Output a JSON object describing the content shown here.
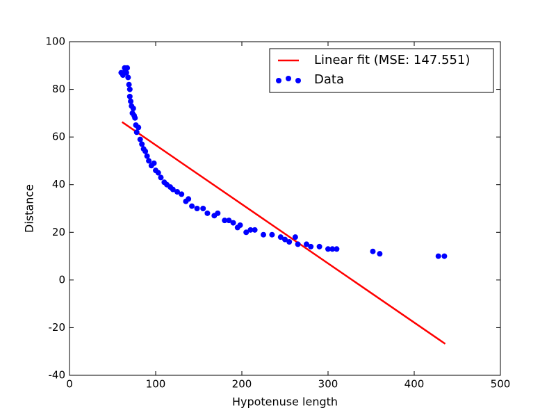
{
  "chart_data": {
    "type": "scatter",
    "xlabel": "Hypotenuse length",
    "ylabel": "Distance",
    "xlim": [
      0,
      500
    ],
    "ylim": [
      -40,
      100
    ],
    "xticks": [
      0,
      100,
      200,
      300,
      400,
      500
    ],
    "yticks": [
      -40,
      -20,
      0,
      20,
      40,
      60,
      80,
      100
    ],
    "grid": false,
    "legend": "upper right",
    "series": [
      {
        "name": "Linear fit (MSE: 147.551)",
        "type": "line",
        "color": "#ff0000",
        "x": [
          61,
          436
        ],
        "values": [
          66.3,
          -26.8
        ]
      },
      {
        "name": "Data",
        "type": "scatter",
        "color": "#0000ff",
        "x": [
          60,
          62,
          64,
          65,
          66,
          67,
          68,
          69,
          70,
          70,
          71,
          72,
          73,
          74,
          75,
          76,
          77,
          78,
          80,
          82,
          84,
          86,
          88,
          90,
          92,
          95,
          98,
          100,
          103,
          106,
          110,
          113,
          117,
          120,
          125,
          130,
          135,
          138,
          142,
          148,
          155,
          160,
          168,
          172,
          180,
          185,
          190,
          195,
          198,
          205,
          210,
          215,
          225,
          235,
          245,
          250,
          255,
          262,
          265,
          275,
          280,
          290,
          300,
          305,
          310,
          352,
          360,
          428,
          435
        ],
        "values": [
          87,
          86,
          89,
          88,
          87,
          89,
          85,
          82,
          80,
          77,
          75,
          73,
          70,
          72,
          69,
          68,
          65,
          62,
          64,
          59,
          57,
          55,
          54,
          52,
          50,
          48,
          49,
          46,
          45,
          43,
          41,
          40,
          39,
          38,
          37,
          36,
          33,
          34,
          31,
          30,
          30,
          28,
          27,
          28,
          25,
          25,
          24,
          22,
          23,
          20,
          21,
          21,
          19,
          19,
          18,
          17,
          16,
          18,
          15,
          15,
          14,
          14,
          13,
          13,
          13,
          12,
          11,
          10,
          10
        ]
      }
    ]
  }
}
